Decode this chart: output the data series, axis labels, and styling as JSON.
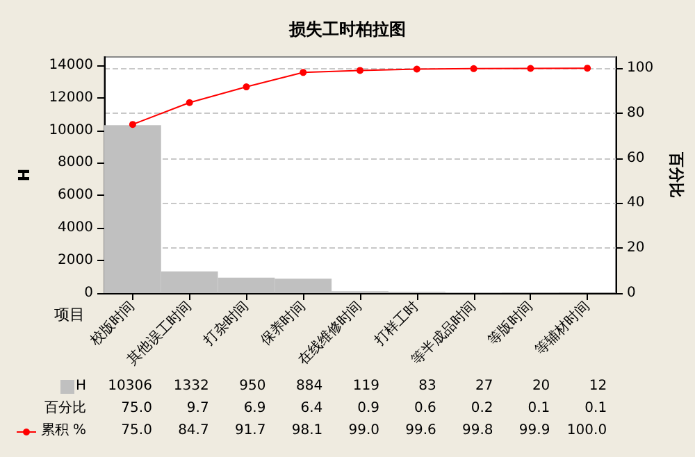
{
  "chart_data": {
    "type": "bar",
    "title": "损失工时柏拉图",
    "xlabel": "项目",
    "ylabel": "H",
    "y2label": "百分比",
    "categories": [
      "校版时间",
      "其他误工时间",
      "打杂时间",
      "保养时间",
      "在线维修时间",
      "打样工时",
      "等半成品时间",
      "等版时间",
      "等辅材时间"
    ],
    "series": [
      {
        "name": "H",
        "color": "#c0c0c0",
        "values": [
          10306,
          1332,
          950,
          884,
          119,
          83,
          27,
          20,
          12
        ],
        "value_labels": [
          "10306",
          "1332",
          "950",
          "884",
          "119",
          "83",
          "27",
          "20",
          "12"
        ]
      },
      {
        "name": "累积 %",
        "type": "line",
        "axis": "y2",
        "color": "#ff0000",
        "values": [
          75.0,
          84.7,
          91.7,
          98.1,
          99.0,
          99.6,
          99.8,
          99.9,
          100.0
        ],
        "value_labels": [
          "75.0",
          "84.7",
          "91.7",
          "98.1",
          "99.0",
          "99.6",
          "99.8",
          "99.9",
          "100.0"
        ]
      }
    ],
    "ylim": [
      0,
      14500
    ],
    "yticks": [
      0,
      2000,
      4000,
      6000,
      8000,
      10000,
      12000,
      14000
    ],
    "y2lim": [
      0,
      105
    ],
    "y2ticks": [
      0,
      20,
      40,
      60,
      80,
      100
    ],
    "grid": "y",
    "marker": "circle",
    "line_style": "solid",
    "legend": "bottom left",
    "annotations": [
      "百分比",
      "75.0",
      "9.7",
      "6.9",
      "6.4",
      "0.9",
      "0.6",
      "0.2",
      "0.1",
      "0.1"
    ]
  }
}
